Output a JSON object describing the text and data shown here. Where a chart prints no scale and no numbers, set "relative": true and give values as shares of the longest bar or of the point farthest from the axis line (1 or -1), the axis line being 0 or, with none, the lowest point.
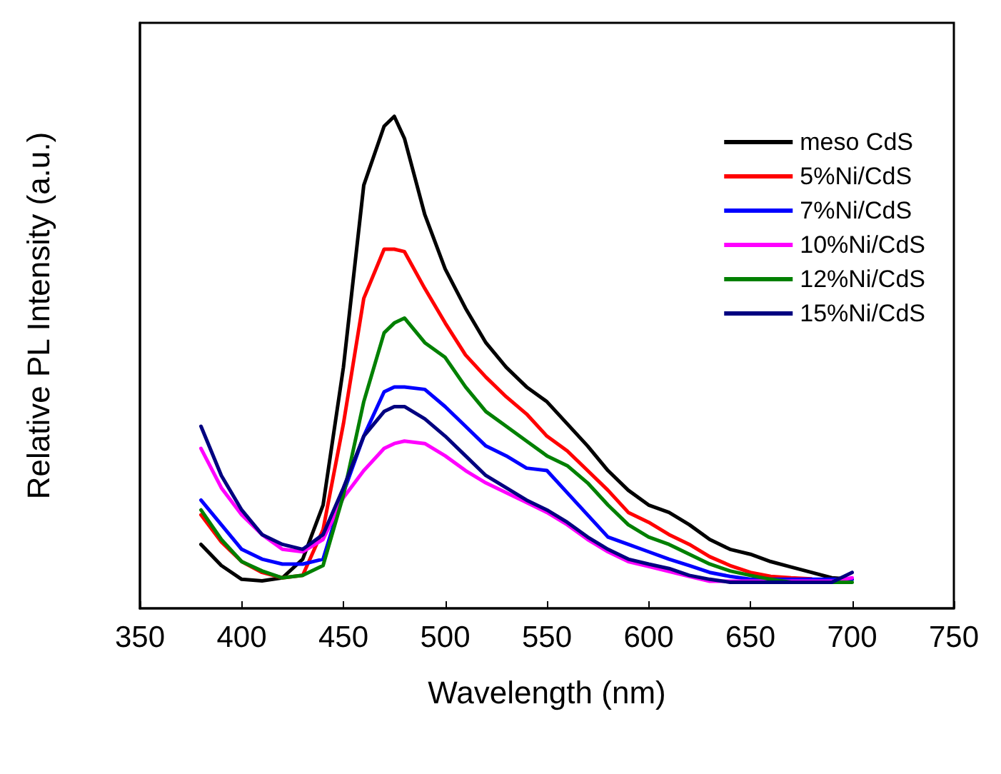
{
  "chart_data": {
    "type": "line",
    "xlabel": "Wavelength (nm)",
    "ylabel": "Relative PL Intensity (a.u.)",
    "relative": true,
    "x": [
      380,
      390,
      400,
      410,
      420,
      430,
      440,
      450,
      460,
      470,
      475,
      480,
      490,
      500,
      510,
      520,
      530,
      540,
      550,
      560,
      570,
      580,
      590,
      600,
      610,
      620,
      630,
      640,
      650,
      660,
      670,
      680,
      690,
      700
    ],
    "xlim": [
      350,
      750
    ],
    "xticks": [
      350,
      400,
      450,
      500,
      550,
      600,
      650,
      700,
      750
    ],
    "tick_labels": "x",
    "grid": false,
    "legend": "top right",
    "marker": "none",
    "line_style": "solid",
    "series": [
      {
        "name": "meso CdS",
        "color": "#000000",
        "values": [
          0.13,
          0.087,
          0.059,
          0.056,
          0.062,
          0.1,
          0.21,
          0.49,
          0.86,
          0.98,
          1.0,
          0.955,
          0.8,
          0.69,
          0.61,
          0.54,
          0.49,
          0.45,
          0.42,
          0.375,
          0.33,
          0.28,
          0.24,
          0.21,
          0.195,
          0.17,
          0.14,
          0.12,
          0.11,
          0.095,
          0.084,
          0.073,
          0.062,
          0.059
        ]
      },
      {
        "name": "5%Ni/CdS",
        "color": "#ff0000",
        "values": [
          0.19,
          0.135,
          0.095,
          0.073,
          0.062,
          0.067,
          0.16,
          0.375,
          0.63,
          0.73,
          0.73,
          0.725,
          0.65,
          0.58,
          0.515,
          0.47,
          0.43,
          0.395,
          0.35,
          0.32,
          0.28,
          0.24,
          0.195,
          0.175,
          0.15,
          0.13,
          0.105,
          0.087,
          0.073,
          0.065,
          0.062,
          0.06,
          null,
          null
        ]
      },
      {
        "name": "7%Ni/CdS",
        "color": "#0000ff",
        "values": [
          0.22,
          0.17,
          0.12,
          0.1,
          0.09,
          0.09,
          0.1,
          0.235,
          0.35,
          0.44,
          0.45,
          0.45,
          0.445,
          0.41,
          0.37,
          0.33,
          0.31,
          0.285,
          0.28,
          0.235,
          0.19,
          0.145,
          0.13,
          0.115,
          0.1,
          0.087,
          0.073,
          0.065,
          0.059,
          0.059,
          0.059,
          0.059,
          0.059,
          0.059
        ]
      },
      {
        "name": "10%Ni/CdS",
        "color": "#ff00ff",
        "values": [
          0.325,
          0.245,
          0.19,
          0.15,
          0.12,
          0.115,
          0.14,
          0.225,
          0.28,
          0.325,
          0.335,
          0.34,
          0.335,
          0.31,
          0.28,
          0.255,
          0.235,
          0.215,
          0.195,
          0.17,
          0.14,
          0.115,
          0.095,
          0.085,
          0.075,
          0.065,
          0.055,
          0.055,
          0.055,
          0.055,
          0.055,
          0.055,
          0.055,
          0.062
        ]
      },
      {
        "name": "12%Ni/CdS",
        "color": "#008000",
        "values": [
          0.2,
          0.14,
          0.095,
          0.076,
          0.062,
          0.067,
          0.087,
          0.23,
          0.42,
          0.56,
          0.58,
          0.59,
          0.54,
          0.51,
          0.45,
          0.4,
          0.37,
          0.34,
          0.31,
          0.29,
          0.255,
          0.21,
          0.17,
          0.145,
          0.13,
          0.11,
          0.09,
          0.076,
          0.067,
          0.059,
          0.053,
          0.053,
          0.053,
          0.053
        ]
      },
      {
        "name": "15%Ni/CdS",
        "color": "#000080",
        "values": [
          0.37,
          0.27,
          0.2,
          0.15,
          0.13,
          0.12,
          0.15,
          0.245,
          0.35,
          0.4,
          0.41,
          0.41,
          0.385,
          0.35,
          0.31,
          0.27,
          0.245,
          0.22,
          0.2,
          0.175,
          0.145,
          0.12,
          0.1,
          0.09,
          0.081,
          0.067,
          0.059,
          0.053,
          0.053,
          0.053,
          0.053,
          0.053,
          0.053,
          0.073
        ]
      }
    ]
  }
}
